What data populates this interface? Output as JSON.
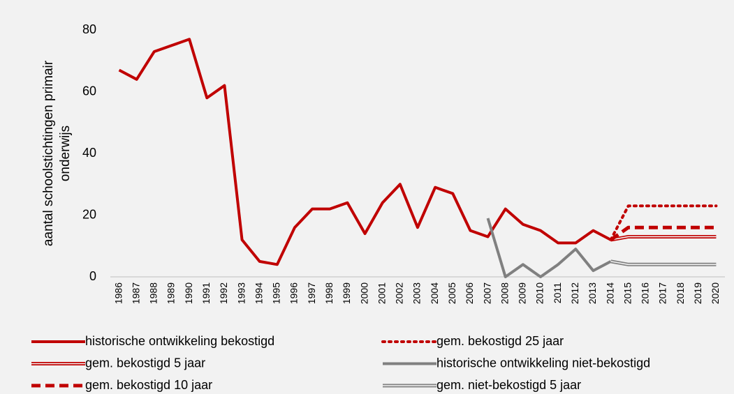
{
  "chart_data": {
    "type": "line",
    "ylabel": [
      "aantal schoolstichtingen primair",
      "onderwijs"
    ],
    "categories": [
      "1986",
      "1987",
      "1988",
      "1989",
      "1990",
      "1991",
      "1992",
      "1993",
      "1994",
      "1995",
      "1996",
      "1997",
      "1998",
      "1999",
      "2000",
      "2001",
      "2002",
      "2003",
      "2004",
      "2005",
      "2006",
      "2007",
      "2008",
      "2009",
      "2010",
      "2011",
      "2012",
      "2013",
      "2014",
      "2015",
      "2016",
      "2017",
      "2018",
      "2019",
      "2020"
    ],
    "ylim": [
      0,
      80
    ],
    "yticks": [
      0,
      20,
      40,
      60,
      80
    ],
    "grid": false,
    "legend": "bottom",
    "series": [
      {
        "name": "historische ontwikkeling bekostigd",
        "color": "#c00000",
        "style": "solid",
        "values": [
          67,
          64,
          73,
          75,
          77,
          58,
          62,
          12,
          5,
          4,
          16,
          22,
          22,
          24,
          14,
          24,
          30,
          16,
          29,
          27,
          15,
          13,
          22,
          17,
          15,
          11,
          11,
          15,
          12,
          null,
          null,
          null,
          null,
          null,
          null
        ]
      },
      {
        "name": "gem. bekostigd 25 jaar",
        "color": "#c00000",
        "style": "dotted",
        "values": [
          null,
          null,
          null,
          null,
          null,
          null,
          null,
          null,
          null,
          null,
          null,
          null,
          null,
          null,
          null,
          null,
          null,
          null,
          null,
          null,
          null,
          null,
          null,
          null,
          null,
          null,
          null,
          null,
          12,
          23,
          23,
          23,
          23,
          23,
          23
        ]
      },
      {
        "name": "gem. bekostigd 5 jaar",
        "color": "#c00000",
        "style": "double",
        "values": [
          null,
          null,
          null,
          null,
          null,
          null,
          null,
          null,
          null,
          null,
          null,
          null,
          null,
          null,
          null,
          null,
          null,
          null,
          null,
          null,
          null,
          null,
          null,
          null,
          null,
          null,
          null,
          null,
          12,
          13,
          13,
          13,
          13,
          13,
          13
        ]
      },
      {
        "name": "historische ontwikkeling niet-bekostigd",
        "color": "#808080",
        "style": "solid",
        "values": [
          null,
          null,
          null,
          null,
          null,
          null,
          null,
          null,
          null,
          null,
          null,
          null,
          null,
          null,
          null,
          null,
          null,
          null,
          null,
          null,
          null,
          19,
          0,
          4,
          0,
          4,
          9,
          2,
          5,
          null,
          null,
          null,
          null,
          null,
          null
        ]
      },
      {
        "name": "gem. bekostigd 10 jaar",
        "color": "#c00000",
        "style": "dashed",
        "values": [
          null,
          null,
          null,
          null,
          null,
          null,
          null,
          null,
          null,
          null,
          null,
          null,
          null,
          null,
          null,
          null,
          null,
          null,
          null,
          null,
          null,
          null,
          null,
          null,
          null,
          null,
          null,
          null,
          12,
          16,
          16,
          16,
          16,
          16,
          16
        ]
      },
      {
        "name": "gem. niet-bekostigd 5 jaar",
        "color": "#808080",
        "style": "double",
        "values": [
          null,
          null,
          null,
          null,
          null,
          null,
          null,
          null,
          null,
          null,
          null,
          null,
          null,
          null,
          null,
          null,
          null,
          null,
          null,
          null,
          null,
          null,
          null,
          null,
          null,
          null,
          null,
          null,
          5,
          4,
          4,
          4,
          4,
          4,
          4
        ]
      }
    ]
  }
}
